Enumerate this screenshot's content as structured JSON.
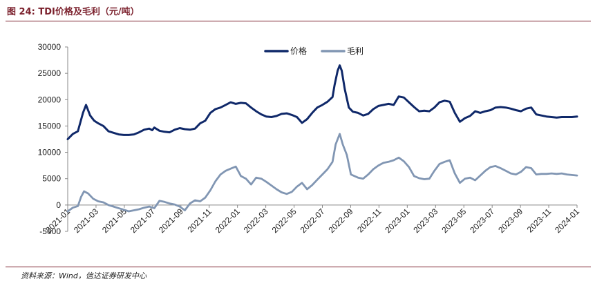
{
  "figure": {
    "title": "图 24:  TDI价格及毛利（元/吨）",
    "source": "资料来源：Wind，信达证券研发中心"
  },
  "chart_data": {
    "type": "line",
    "title": "TDI价格及毛利（元/吨）",
    "xlabel": "",
    "ylabel": "",
    "ylim": [
      -5000,
      30000
    ],
    "yticks": [
      -5000,
      0,
      5000,
      10000,
      15000,
      20000,
      25000,
      30000
    ],
    "xticks": [
      "2021-01",
      "2021-03",
      "2021-05",
      "2021-07",
      "2021-09",
      "2021-11",
      "2022-01",
      "2022-03",
      "2022-05",
      "2022-07",
      "2022-09",
      "2022-11",
      "2023-01",
      "2023-03",
      "2023-05",
      "2023-07",
      "2023-09",
      "2023-11",
      "2024-01"
    ],
    "legend_position": "top-center",
    "colors": {
      "价格": "#0f2869",
      "毛利": "#8196b3",
      "axis": "#888888"
    },
    "series": [
      {
        "name": "价格",
        "points": [
          [
            0,
            12500
          ],
          [
            0.5,
            13500
          ],
          [
            1,
            14000
          ],
          [
            1.5,
            17500
          ],
          [
            1.8,
            19000
          ],
          [
            2.2,
            17000
          ],
          [
            2.6,
            16000
          ],
          [
            3,
            15500
          ],
          [
            3.5,
            15000
          ],
          [
            4,
            14000
          ],
          [
            4.5,
            13700
          ],
          [
            5,
            13400
          ],
          [
            5.5,
            13300
          ],
          [
            6,
            13300
          ],
          [
            6.5,
            13400
          ],
          [
            7,
            13800
          ],
          [
            7.5,
            14300
          ],
          [
            8,
            14500
          ],
          [
            8.3,
            14200
          ],
          [
            8.5,
            14700
          ],
          [
            9,
            14100
          ],
          [
            9.5,
            13900
          ],
          [
            10,
            13800
          ],
          [
            10.5,
            14300
          ],
          [
            11,
            14600
          ],
          [
            11.5,
            14400
          ],
          [
            12,
            14300
          ],
          [
            12.5,
            14500
          ],
          [
            13,
            15500
          ],
          [
            13.5,
            16000
          ],
          [
            14,
            17500
          ],
          [
            14.5,
            18200
          ],
          [
            15,
            18500
          ],
          [
            15.5,
            19000
          ],
          [
            16,
            19500
          ],
          [
            16.5,
            19200
          ],
          [
            17,
            19400
          ],
          [
            17.5,
            19300
          ],
          [
            18,
            18500
          ],
          [
            18.5,
            17800
          ],
          [
            19,
            17200
          ],
          [
            19.5,
            16800
          ],
          [
            20,
            16700
          ],
          [
            20.5,
            16900
          ],
          [
            21,
            17300
          ],
          [
            21.5,
            17400
          ],
          [
            22,
            17100
          ],
          [
            22.5,
            16700
          ],
          [
            23,
            15600
          ],
          [
            23.5,
            16300
          ],
          [
            24,
            17500
          ],
          [
            24.5,
            18500
          ],
          [
            25,
            19000
          ],
          [
            25.5,
            19600
          ],
          [
            26,
            20500
          ],
          [
            26.2,
            22800
          ],
          [
            26.5,
            25500
          ],
          [
            26.7,
            26500
          ],
          [
            26.9,
            25500
          ],
          [
            27.2,
            22000
          ],
          [
            27.6,
            18500
          ],
          [
            28,
            17700
          ],
          [
            28.5,
            17500
          ],
          [
            29,
            17000
          ],
          [
            29.5,
            17300
          ],
          [
            30,
            18200
          ],
          [
            30.5,
            18800
          ],
          [
            31,
            19000
          ],
          [
            31.5,
            19200
          ],
          [
            32,
            19000
          ],
          [
            32.5,
            20600
          ],
          [
            33,
            20400
          ],
          [
            33.5,
            19500
          ],
          [
            34,
            18600
          ],
          [
            34.5,
            17800
          ],
          [
            35,
            17900
          ],
          [
            35.5,
            17800
          ],
          [
            36,
            18500
          ],
          [
            36.5,
            19500
          ],
          [
            37,
            19800
          ],
          [
            37.5,
            19600
          ],
          [
            38,
            17500
          ],
          [
            38.5,
            15800
          ],
          [
            39,
            16500
          ],
          [
            39.5,
            16900
          ],
          [
            40,
            17800
          ],
          [
            40.5,
            17500
          ],
          [
            41,
            17800
          ],
          [
            41.5,
            18000
          ],
          [
            42,
            18500
          ],
          [
            42.5,
            18600
          ],
          [
            43,
            18500
          ],
          [
            43.5,
            18300
          ],
          [
            44,
            18000
          ],
          [
            44.5,
            17800
          ],
          [
            45,
            18300
          ],
          [
            45.5,
            18500
          ],
          [
            46,
            17200
          ],
          [
            46.5,
            17000
          ],
          [
            47,
            16800
          ],
          [
            47.5,
            16700
          ],
          [
            48,
            16600
          ],
          [
            48.5,
            16700
          ],
          [
            49,
            16700
          ],
          [
            49.5,
            16700
          ],
          [
            50,
            16800
          ]
        ]
      },
      {
        "name": "毛利",
        "points": [
          [
            0,
            -1200
          ],
          [
            0.5,
            -500
          ],
          [
            1,
            -200
          ],
          [
            1.3,
            1500
          ],
          [
            1.6,
            2600
          ],
          [
            2,
            2200
          ],
          [
            2.5,
            1200
          ],
          [
            3,
            700
          ],
          [
            3.5,
            500
          ],
          [
            4,
            0
          ],
          [
            4.5,
            -300
          ],
          [
            5,
            -600
          ],
          [
            5.5,
            -900
          ],
          [
            6,
            -1200
          ],
          [
            6.5,
            -1000
          ],
          [
            7,
            -800
          ],
          [
            7.5,
            -500
          ],
          [
            8,
            -300
          ],
          [
            8.5,
            -600
          ],
          [
            9,
            800
          ],
          [
            9.5,
            600
          ],
          [
            10,
            300
          ],
          [
            10.5,
            100
          ],
          [
            11,
            -300
          ],
          [
            11.5,
            -1000
          ],
          [
            12,
            300
          ],
          [
            12.5,
            900
          ],
          [
            13,
            700
          ],
          [
            13.5,
            1400
          ],
          [
            14,
            2800
          ],
          [
            14.5,
            4500
          ],
          [
            15,
            5800
          ],
          [
            15.5,
            6500
          ],
          [
            16,
            6900
          ],
          [
            16.5,
            7300
          ],
          [
            17,
            5500
          ],
          [
            17.5,
            5000
          ],
          [
            18,
            3900
          ],
          [
            18.5,
            5200
          ],
          [
            19,
            5000
          ],
          [
            19.5,
            4400
          ],
          [
            20,
            3700
          ],
          [
            20.5,
            3000
          ],
          [
            21,
            2400
          ],
          [
            21.5,
            2100
          ],
          [
            22,
            2500
          ],
          [
            22.5,
            3500
          ],
          [
            23,
            4200
          ],
          [
            23.5,
            3000
          ],
          [
            24,
            3800
          ],
          [
            24.5,
            4800
          ],
          [
            25,
            5800
          ],
          [
            25.5,
            6800
          ],
          [
            26,
            8200
          ],
          [
            26.3,
            11500
          ],
          [
            26.7,
            13500
          ],
          [
            27,
            11500
          ],
          [
            27.4,
            9500
          ],
          [
            27.8,
            5800
          ],
          [
            28.5,
            5200
          ],
          [
            29,
            5000
          ],
          [
            29.5,
            5800
          ],
          [
            30,
            6800
          ],
          [
            30.5,
            7500
          ],
          [
            31,
            8000
          ],
          [
            31.5,
            8200
          ],
          [
            32,
            8500
          ],
          [
            32.5,
            9000
          ],
          [
            33,
            8300
          ],
          [
            33.5,
            7200
          ],
          [
            34,
            5500
          ],
          [
            34.5,
            5100
          ],
          [
            35,
            4900
          ],
          [
            35.5,
            5000
          ],
          [
            36,
            6500
          ],
          [
            36.5,
            7800
          ],
          [
            37,
            8200
          ],
          [
            37.5,
            8500
          ],
          [
            38,
            6000
          ],
          [
            38.5,
            4200
          ],
          [
            39,
            5000
          ],
          [
            39.5,
            5200
          ],
          [
            40,
            4700
          ],
          [
            40.5,
            5600
          ],
          [
            41,
            6500
          ],
          [
            41.5,
            7200
          ],
          [
            42,
            7400
          ],
          [
            42.5,
            7000
          ],
          [
            43,
            6500
          ],
          [
            43.5,
            6000
          ],
          [
            44,
            5800
          ],
          [
            44.5,
            6300
          ],
          [
            45,
            7200
          ],
          [
            45.5,
            7000
          ],
          [
            46,
            5800
          ],
          [
            46.5,
            5900
          ],
          [
            47,
            5900
          ],
          [
            47.5,
            6000
          ],
          [
            48,
            5900
          ],
          [
            48.5,
            6000
          ],
          [
            49,
            5800
          ],
          [
            49.5,
            5700
          ],
          [
            50,
            5600
          ]
        ]
      }
    ]
  }
}
